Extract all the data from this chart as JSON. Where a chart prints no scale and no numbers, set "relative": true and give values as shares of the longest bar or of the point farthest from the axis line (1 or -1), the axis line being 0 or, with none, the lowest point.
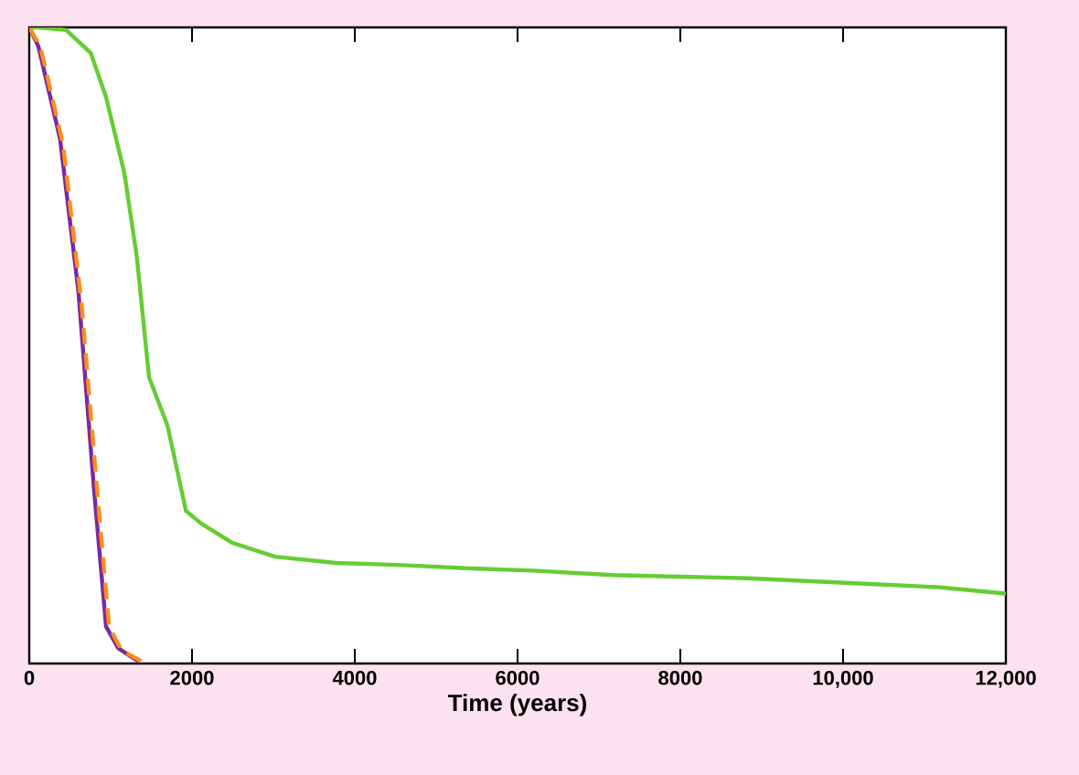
{
  "chart_data": {
    "type": "line",
    "relative": true,
    "xlabel": "Time (years)",
    "xlim": [
      0,
      12000
    ],
    "xticks": [
      0,
      2000,
      4000,
      6000,
      8000,
      {
        "value": 10000,
        "label": "10,000"
      },
      {
        "value": 12000,
        "label": "12,000"
      }
    ],
    "series": [
      {
        "color": "#66cc33",
        "line_style": "solid",
        "x": [
          0,
          113,
          453,
          755,
          944,
          1170,
          1321,
          1472,
          1699,
          1925,
          2114,
          2492,
          3020,
          3775,
          4530,
          5512,
          6190,
          7170,
          8833,
          10335,
          11170,
          12000
        ],
        "values": [
          1.0,
          1.0,
          0.996,
          0.96,
          0.89,
          0.77,
          0.64,
          0.45,
          0.374,
          0.24,
          0.22,
          0.19,
          0.168,
          0.158,
          0.155,
          0.149,
          0.146,
          0.139,
          0.134,
          0.125,
          0.12,
          0.11
        ]
      },
      {
        "color": "#7a2a9a",
        "line_style": "solid",
        "x": [
          0,
          113,
          378,
          604,
          793,
          944,
          1095,
          1359
        ],
        "values": [
          1.0,
          0.97,
          0.825,
          0.585,
          0.278,
          0.058,
          0.024,
          0.002
        ]
      },
      {
        "color": "#ff8c1a",
        "line_style": "dashed",
        "x": [
          0,
          136,
          415,
          642,
          830,
          981,
          1133,
          1397
        ],
        "values": [
          1.0,
          0.97,
          0.816,
          0.566,
          0.278,
          0.058,
          0.021,
          0.002
        ]
      }
    ]
  }
}
